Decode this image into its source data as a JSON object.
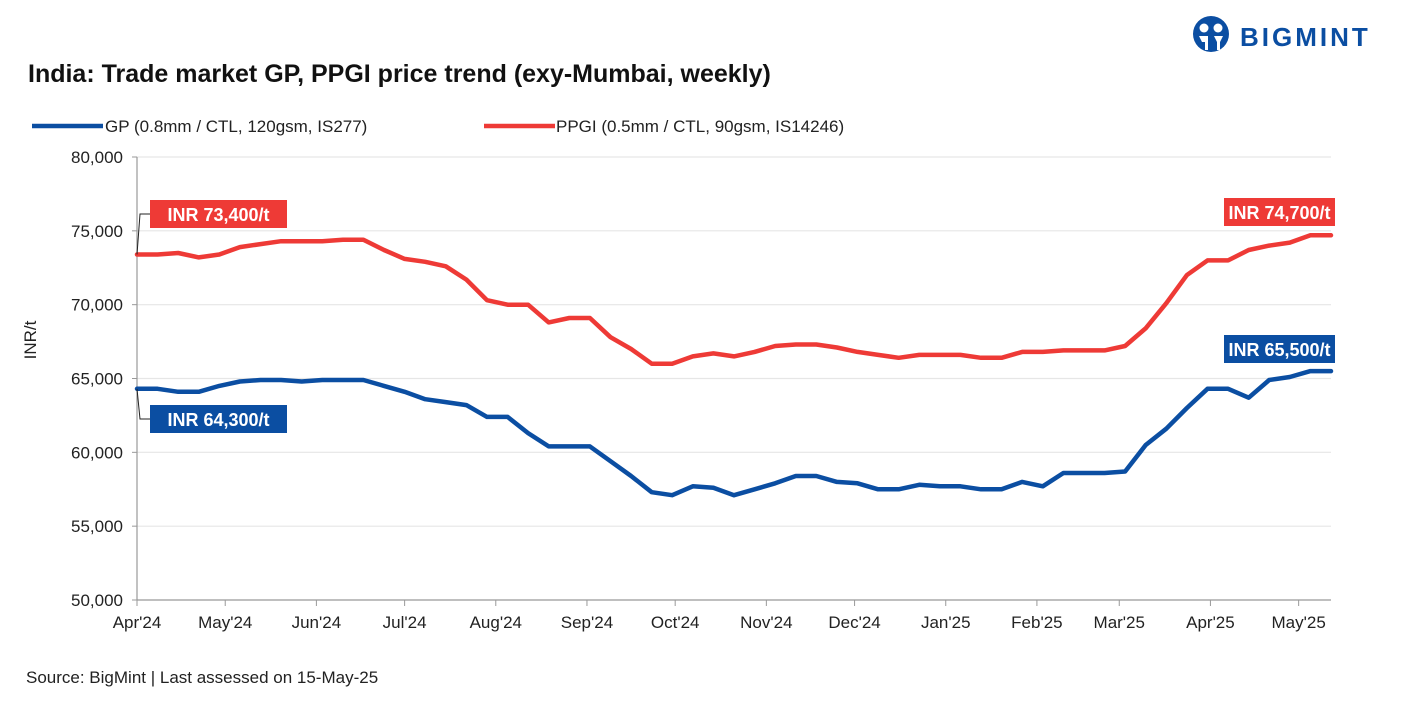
{
  "brand": {
    "name": "BIGMINT",
    "color": "#0B4EA2"
  },
  "source": "Source: BigMint | Last assessed on 15-May-25",
  "chart_data": {
    "type": "line",
    "title": "India: Trade market GP, PPGI price trend (exy-Mumbai, weekly)",
    "ylabel": "INR/t",
    "xlabel": "",
    "ylim": [
      50000,
      80000
    ],
    "yticks": [
      50000,
      55000,
      60000,
      65000,
      70000,
      75000,
      80000
    ],
    "ytick_labels": [
      "50,000",
      "55,000",
      "60,000",
      "65,000",
      "70,000",
      "75,000",
      "80,000"
    ],
    "xtick_labels": [
      "Apr'24",
      "May'24",
      "Jun'24",
      "Jul'24",
      "Aug'24",
      "Sep'24",
      "Oct'24",
      "Nov'24",
      "Dec'24",
      "Jan'25",
      "Feb'25",
      "Mar'25",
      "Apr'25",
      "May'25"
    ],
    "xtick_dates": [
      "2024-04-01",
      "2024-05-01",
      "2024-06-01",
      "2024-07-01",
      "2024-08-01",
      "2024-09-01",
      "2024-10-01",
      "2024-11-01",
      "2024-12-01",
      "2025-01-01",
      "2025-02-01",
      "2025-03-01",
      "2025-04-01",
      "2025-05-01"
    ],
    "grid": "horizontal",
    "legend": "top-left",
    "x": [
      "2024-04-04",
      "2024-04-11",
      "2024-04-18",
      "2024-04-25",
      "2024-05-02",
      "2024-05-09",
      "2024-05-16",
      "2024-05-23",
      "2024-05-30",
      "2024-06-06",
      "2024-06-13",
      "2024-06-20",
      "2024-06-27",
      "2024-07-04",
      "2024-07-11",
      "2024-07-18",
      "2024-07-25",
      "2024-08-01",
      "2024-08-08",
      "2024-08-15",
      "2024-08-22",
      "2024-08-29",
      "2024-09-05",
      "2024-09-12",
      "2024-09-19",
      "2024-09-26",
      "2024-10-03",
      "2024-10-10",
      "2024-10-17",
      "2024-10-24",
      "2024-10-31",
      "2024-11-07",
      "2024-11-14",
      "2024-11-21",
      "2024-11-28",
      "2024-12-05",
      "2024-12-12",
      "2024-12-19",
      "2024-12-26",
      "2025-01-02",
      "2025-01-09",
      "2025-01-16",
      "2025-01-23",
      "2025-01-30",
      "2025-02-06",
      "2025-02-13",
      "2025-02-20",
      "2025-02-27",
      "2025-03-06",
      "2025-03-13",
      "2025-03-20",
      "2025-03-27",
      "2025-04-03",
      "2025-04-10",
      "2025-04-17",
      "2025-04-24",
      "2025-05-01",
      "2025-05-08",
      "2025-05-15"
    ],
    "series": [
      {
        "name": "GP (0.8mm / CTL, 120gsm, IS277)",
        "color": "#0B4EA2",
        "values": [
          64300,
          64300,
          64100,
          64100,
          64500,
          64800,
          64900,
          64900,
          64800,
          64900,
          64900,
          64900,
          64500,
          64100,
          63600,
          63400,
          63200,
          62400,
          62400,
          61300,
          60400,
          60400,
          60400,
          59400,
          58400,
          57300,
          57100,
          57700,
          57600,
          57100,
          57500,
          57900,
          58400,
          58400,
          58000,
          57900,
          57500,
          57500,
          57800,
          57700,
          57700,
          57500,
          57500,
          58000,
          57700,
          58600,
          58600,
          58600,
          58700,
          60500,
          61600,
          63000,
          64300,
          64300,
          63700,
          64900,
          65100,
          65500,
          65500
        ],
        "start_label": "INR 64,300/t",
        "end_label": "INR 65,500/t"
      },
      {
        "name": "PPGI (0.5mm / CTL, 90gsm, IS14246)",
        "color": "#EE3A36",
        "values": [
          73400,
          73400,
          73500,
          73200,
          73400,
          73900,
          74100,
          74300,
          74300,
          74300,
          74400,
          74400,
          73700,
          73100,
          72900,
          72600,
          71700,
          70300,
          70000,
          70000,
          68800,
          69100,
          69100,
          67800,
          67000,
          66000,
          66000,
          66500,
          66700,
          66500,
          66800,
          67200,
          67300,
          67300,
          67100,
          66800,
          66600,
          66400,
          66600,
          66600,
          66600,
          66400,
          66400,
          66800,
          66800,
          66900,
          66900,
          66900,
          67200,
          68400,
          70100,
          72000,
          73000,
          73000,
          73700,
          74000,
          74200,
          74700,
          74700
        ],
        "start_label": "INR 73,400/t",
        "end_label": "INR 74,700/t"
      }
    ]
  }
}
